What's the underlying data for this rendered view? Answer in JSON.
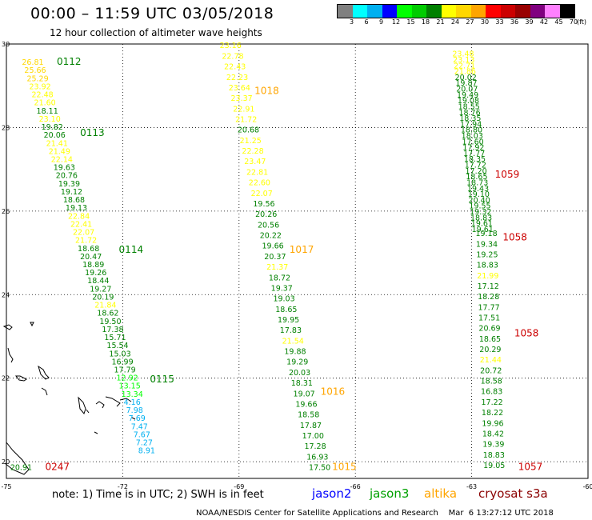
{
  "header": {
    "title": "00:00 – 11:59 UTC 03/05/2018",
    "subtitle": "12 hour collection of altimeter wave heights"
  },
  "color_scale": {
    "unit": "(ft)",
    "labels": [
      "3",
      "6",
      "9",
      "12",
      "15",
      "18",
      "21",
      "24",
      "27",
      "30",
      "33",
      "36",
      "39",
      "42",
      "45",
      "70"
    ],
    "colors": [
      "#808080",
      "#00ffff",
      "#00b0f0",
      "#0000ff",
      "#00ff00",
      "#00cc00",
      "#008000",
      "#ffff00",
      "#ffd700",
      "#ffa500",
      "#ff0000",
      "#cc0000",
      "#990000",
      "#800080",
      "#ff80ff",
      "#000000"
    ]
  },
  "map": {
    "lon_ticks": [
      "-75",
      "-72",
      "-69",
      "-66",
      "-63",
      "-60"
    ],
    "lat_ticks": [
      "30",
      "28",
      "26",
      "24",
      "22",
      "20"
    ],
    "lon_range": [
      -75,
      -60
    ],
    "lat_range": [
      19.6,
      30
    ],
    "grid": true
  },
  "tracks": [
    {
      "satellite": "jason3",
      "labels": [
        {
          "text": "0112",
          "pos": [
            -73.7,
            29.5
          ]
        },
        {
          "text": "0113",
          "pos": [
            -73.1,
            27.8
          ]
        },
        {
          "text": "0114",
          "pos": [
            -72.1,
            25.0
          ]
        },
        {
          "text": "0115",
          "pos": [
            -71.3,
            21.9
          ]
        }
      ],
      "start": [
        -74.6,
        29.5
      ],
      "end": [
        -71.6,
        20.2
      ],
      "values": [
        {
          "v": "26.81",
          "c": "#ffd700"
        },
        {
          "v": "25.66",
          "c": "#ffd700"
        },
        {
          "v": "25.29",
          "c": "#ffd700"
        },
        {
          "v": "23.92",
          "c": "#ffff00"
        },
        {
          "v": "22.48",
          "c": "#ffff00"
        },
        {
          "v": "21.60",
          "c": "#ffff00"
        },
        {
          "v": "18.11",
          "c": "#008000"
        },
        {
          "v": "23.10",
          "c": "#ffff00"
        },
        {
          "v": "19.82",
          "c": "#008000"
        },
        {
          "v": "20.06",
          "c": "#008000"
        },
        {
          "v": "21.41",
          "c": "#ffff00"
        },
        {
          "v": "21.49",
          "c": "#ffff00"
        },
        {
          "v": "22.14",
          "c": "#ffff00"
        },
        {
          "v": "19.63",
          "c": "#008000"
        },
        {
          "v": "20.76",
          "c": "#008000"
        },
        {
          "v": "19.39",
          "c": "#008000"
        },
        {
          "v": "19.12",
          "c": "#008000"
        },
        {
          "v": "18.68",
          "c": "#008000"
        },
        {
          "v": "19.13",
          "c": "#008000"
        },
        {
          "v": "22.84",
          "c": "#ffff00"
        },
        {
          "v": "22.41",
          "c": "#ffff00"
        },
        {
          "v": "22.07",
          "c": "#ffff00"
        },
        {
          "v": "21.72",
          "c": "#ffff00"
        },
        {
          "v": "18.68",
          "c": "#008000"
        },
        {
          "v": "20.47",
          "c": "#008000"
        },
        {
          "v": "18.89",
          "c": "#008000"
        },
        {
          "v": "19.26",
          "c": "#008000"
        },
        {
          "v": "18.44",
          "c": "#008000"
        },
        {
          "v": "19.27",
          "c": "#008000"
        },
        {
          "v": "20.19",
          "c": "#008000"
        },
        {
          "v": "21.84",
          "c": "#ffff00"
        },
        {
          "v": "18.62",
          "c": "#008000"
        },
        {
          "v": "19.50",
          "c": "#008000"
        },
        {
          "v": "17.38",
          "c": "#008000"
        },
        {
          "v": "15.71",
          "c": "#008000"
        },
        {
          "v": "15.54",
          "c": "#008000"
        },
        {
          "v": "15.03",
          "c": "#008000"
        },
        {
          "v": "16.99",
          "c": "#008000"
        },
        {
          "v": "17.79",
          "c": "#008000"
        },
        {
          "v": "12.92",
          "c": "#00ff00"
        },
        {
          "v": "13.15",
          "c": "#00ff00"
        },
        {
          "v": "13.34",
          "c": "#00ff00"
        },
        {
          "v": "4.16",
          "c": "#00b0f0"
        },
        {
          "v": "7.98",
          "c": "#00b0f0"
        },
        {
          "v": "7.69",
          "c": "#00b0f0"
        },
        {
          "v": "7.47",
          "c": "#00b0f0"
        },
        {
          "v": "7.67",
          "c": "#00b0f0"
        },
        {
          "v": "7.27",
          "c": "#00b0f0"
        },
        {
          "v": "8.91",
          "c": "#00b0f0"
        }
      ]
    },
    {
      "satellite": "altika",
      "labels": [
        {
          "text": "1018",
          "pos": [
            -68.6,
            28.8
          ]
        },
        {
          "text": "1017",
          "pos": [
            -67.7,
            25.0
          ]
        },
        {
          "text": "1016",
          "pos": [
            -66.9,
            21.6
          ]
        },
        {
          "text": "1015",
          "pos": [
            -66.6,
            19.8
          ]
        }
      ],
      "start": [
        -69.5,
        29.9
      ],
      "end": [
        -67.2,
        19.8
      ],
      "values": [
        {
          "v": "23.16",
          "c": "#ffff00"
        },
        {
          "v": "22.78",
          "c": "#ffff00"
        },
        {
          "v": "22.43",
          "c": "#ffff00"
        },
        {
          "v": "22.23",
          "c": "#ffff00"
        },
        {
          "v": "23.64",
          "c": "#ffff00"
        },
        {
          "v": "23.37",
          "c": "#ffff00"
        },
        {
          "v": "22.91",
          "c": "#ffff00"
        },
        {
          "v": "21.72",
          "c": "#ffff00"
        },
        {
          "v": "20.68",
          "c": "#008000"
        },
        {
          "v": "21.25",
          "c": "#ffff00"
        },
        {
          "v": "22.28",
          "c": "#ffff00"
        },
        {
          "v": "23.47",
          "c": "#ffff00"
        },
        {
          "v": "22.81",
          "c": "#ffff00"
        },
        {
          "v": "22.60",
          "c": "#ffff00"
        },
        {
          "v": "22.07",
          "c": "#ffff00"
        },
        {
          "v": "19.56",
          "c": "#008000"
        },
        {
          "v": "20.26",
          "c": "#008000"
        },
        {
          "v": "20.56",
          "c": "#008000"
        },
        {
          "v": "20.22",
          "c": "#008000"
        },
        {
          "v": "19.66",
          "c": "#008000"
        },
        {
          "v": "20.37",
          "c": "#008000"
        },
        {
          "v": "21.37",
          "c": "#ffff00"
        },
        {
          "v": "18.72",
          "c": "#008000"
        },
        {
          "v": "19.37",
          "c": "#008000"
        },
        {
          "v": "19.03",
          "c": "#008000"
        },
        {
          "v": "18.65",
          "c": "#008000"
        },
        {
          "v": "19.95",
          "c": "#008000"
        },
        {
          "v": "17.83",
          "c": "#008000"
        },
        {
          "v": "21.54",
          "c": "#ffff00"
        },
        {
          "v": "19.88",
          "c": "#008000"
        },
        {
          "v": "19.29",
          "c": "#008000"
        },
        {
          "v": "20.03",
          "c": "#008000"
        },
        {
          "v": "18.31",
          "c": "#008000"
        },
        {
          "v": "19.07",
          "c": "#008000"
        },
        {
          "v": "19.66",
          "c": "#008000"
        },
        {
          "v": "18.58",
          "c": "#008000"
        },
        {
          "v": "17.87",
          "c": "#008000"
        },
        {
          "v": "17.00",
          "c": "#008000"
        },
        {
          "v": "17.28",
          "c": "#008000"
        },
        {
          "v": "16.93",
          "c": "#008000"
        },
        {
          "v": "17.50",
          "c": "#008000"
        }
      ]
    },
    {
      "satellite": "cryosat",
      "labels": [
        {
          "text": "1059",
          "pos": [
            -62.4,
            26.8
          ]
        },
        {
          "text": "1058",
          "pos": [
            -62.2,
            25.3
          ]
        },
        {
          "text": "1058",
          "pos": [
            -61.9,
            23.0
          ]
        },
        {
          "text": "1057",
          "pos": [
            -61.8,
            19.8
          ]
        }
      ],
      "start": [
        -63.5,
        29.7
      ],
      "end": [
        -63.0,
        25.5
      ],
      "values": [
        {
          "v": "23.48",
          "c": "#ffff00"
        },
        {
          "v": "23.13",
          "c": "#ffff00"
        },
        {
          "v": "22.71",
          "c": "#ffff00"
        },
        {
          "v": "21.86",
          "c": "#ffff00"
        },
        {
          "v": "20.02",
          "c": "#008000"
        },
        {
          "v": "19.87",
          "c": "#008000"
        },
        {
          "v": "20.07",
          "c": "#008000"
        },
        {
          "v": "19.49",
          "c": "#008000"
        },
        {
          "v": "19.08",
          "c": "#008000"
        },
        {
          "v": "18.55",
          "c": "#008000"
        },
        {
          "v": "18.76",
          "c": "#008000"
        },
        {
          "v": "18.35",
          "c": "#008000"
        },
        {
          "v": "17.94",
          "c": "#008000"
        },
        {
          "v": "18.80",
          "c": "#008000"
        },
        {
          "v": "18.03",
          "c": "#008000"
        },
        {
          "v": "17.60",
          "c": "#008000"
        },
        {
          "v": "17.92",
          "c": "#008000"
        },
        {
          "v": "17.77",
          "c": "#008000"
        },
        {
          "v": "18.35",
          "c": "#008000"
        },
        {
          "v": "17.72",
          "c": "#008000"
        },
        {
          "v": "17.20",
          "c": "#008000"
        },
        {
          "v": "18.65",
          "c": "#008000"
        },
        {
          "v": "18.73",
          "c": "#008000"
        },
        {
          "v": "19.43",
          "c": "#008000"
        },
        {
          "v": "19.10",
          "c": "#008000"
        },
        {
          "v": "20.40",
          "c": "#008000"
        },
        {
          "v": "19.55",
          "c": "#008000"
        },
        {
          "v": "19.32",
          "c": "#008000"
        },
        {
          "v": "18.83",
          "c": "#008000"
        },
        {
          "v": "19.61",
          "c": "#008000"
        },
        {
          "v": "19.61",
          "c": "#008000"
        }
      ]
    },
    {
      "satellite": "jason3",
      "labels": [],
      "start": [
        -62.9,
        25.4
      ],
      "end": [
        -62.7,
        19.85
      ],
      "values": [
        {
          "v": "19.18",
          "c": "#008000"
        },
        {
          "v": "19.34",
          "c": "#008000"
        },
        {
          "v": "19.25",
          "c": "#008000"
        },
        {
          "v": "18.83",
          "c": "#008000"
        },
        {
          "v": "21.99",
          "c": "#ffff00"
        },
        {
          "v": "17.12",
          "c": "#008000"
        },
        {
          "v": "18.28",
          "c": "#008000"
        },
        {
          "v": "17.77",
          "c": "#008000"
        },
        {
          "v": "17.51",
          "c": "#008000"
        },
        {
          "v": "20.69",
          "c": "#008000"
        },
        {
          "v": "18.65",
          "c": "#008000"
        },
        {
          "v": "20.29",
          "c": "#008000"
        },
        {
          "v": "21.44",
          "c": "#ffff00"
        },
        {
          "v": "20.72",
          "c": "#008000"
        },
        {
          "v": "18.58",
          "c": "#008000"
        },
        {
          "v": "16.83",
          "c": "#008000"
        },
        {
          "v": "17.22",
          "c": "#008000"
        },
        {
          "v": "18.22",
          "c": "#008000"
        },
        {
          "v": "19.96",
          "c": "#008000"
        },
        {
          "v": "18.42",
          "c": "#008000"
        },
        {
          "v": "19.39",
          "c": "#008000"
        },
        {
          "v": "18.83",
          "c": "#008000"
        },
        {
          "v": "19.05",
          "c": "#008000"
        }
      ]
    },
    {
      "satellite": "cryosat",
      "labels": [
        {
          "text": "0247",
          "pos": [
            -74.0,
            19.8
          ]
        }
      ],
      "start": [
        -74.9,
        19.8
      ],
      "end": [
        -74.9,
        19.8
      ],
      "values": [
        {
          "v": "20.91",
          "c": "#008000"
        }
      ]
    }
  ],
  "label_colors": {
    "jason2": "#0000ff",
    "jason3": "#008000",
    "altika": "#ffa500",
    "cryosat": "#cc0000"
  },
  "footer": {
    "note": "note:  1) Time is in UTC;  2) SWH is in feet",
    "legend": [
      {
        "name": "jason2",
        "color": "#0000ff"
      },
      {
        "name": "jason3",
        "color": "#00a000"
      },
      {
        "name": "altika",
        "color": "#ffa500"
      },
      {
        "name": "cryosat s3a",
        "color": "#8b0000"
      }
    ],
    "credit": "NOAA/NESDIS Center for Satellite Applications and Research    Mar  6 13:27:12 UTC 2018"
  }
}
